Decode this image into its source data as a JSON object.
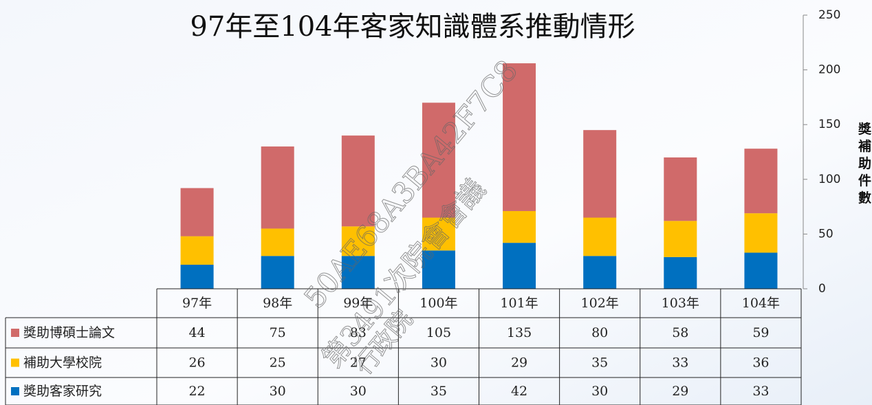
{
  "chart_data": {
    "type": "stacked-bar",
    "title": "97年至104年客家知識體系推動情形",
    "y_axis_label": "獎補助件數",
    "categories": [
      "97年",
      "98年",
      "99年",
      "100年",
      "101年",
      "102年",
      "103年",
      "104年"
    ],
    "series": [
      {
        "name": "獎助博碩士論文",
        "color": "#d06a6a",
        "values": [
          44,
          75,
          83,
          105,
          135,
          80,
          58,
          59
        ]
      },
      {
        "name": "補助大學校院",
        "color": "#ffc000",
        "values": [
          26,
          25,
          27,
          30,
          29,
          35,
          33,
          36
        ]
      },
      {
        "name": "獎助客家研究",
        "color": "#0070c0",
        "values": [
          22,
          30,
          30,
          35,
          42,
          30,
          29,
          33
        ]
      }
    ],
    "ylim": [
      0,
      250
    ],
    "yticks": [
      0,
      50,
      100,
      150,
      200,
      250
    ],
    "watermark": [
      "50AE68A3BA42F7C8",
      "第3491次院會會議",
      "行政院"
    ]
  }
}
